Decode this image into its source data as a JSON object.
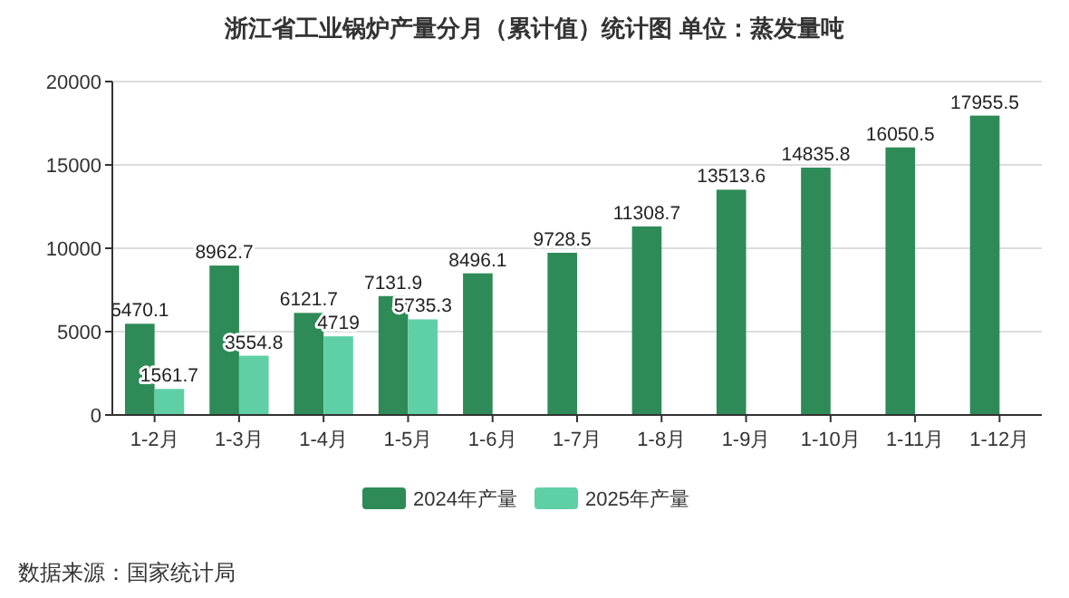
{
  "chart_data": {
    "type": "bar",
    "title": "浙江省工业锅炉产量分月（累计值）统计图 单位：蒸发量吨",
    "categories": [
      "1-2月",
      "1-3月",
      "1-4月",
      "1-5月",
      "1-6月",
      "1-7月",
      "1-8月",
      "1-9月",
      "1-10月",
      "1-11月",
      "1-12月"
    ],
    "series": [
      {
        "name": "2024年产量",
        "color": "#2e8b57",
        "values": [
          5470.1,
          8962.7,
          6121.7,
          7131.9,
          8496.1,
          9728.5,
          11308.7,
          13513.6,
          14835.8,
          16050.5,
          17955.5
        ]
      },
      {
        "name": "2025年产量",
        "color": "#5fd0a5",
        "values": [
          1561.7,
          3554.8,
          4719,
          5735.3,
          null,
          null,
          null,
          null,
          null,
          null,
          null
        ]
      }
    ],
    "ylim": [
      0,
      20000
    ],
    "yticks": [
      0,
      5000,
      10000,
      15000,
      20000
    ],
    "grid": "y",
    "legend": "bottom",
    "data_labels": true,
    "annotations": [
      "数据来源：国家统计局"
    ]
  }
}
